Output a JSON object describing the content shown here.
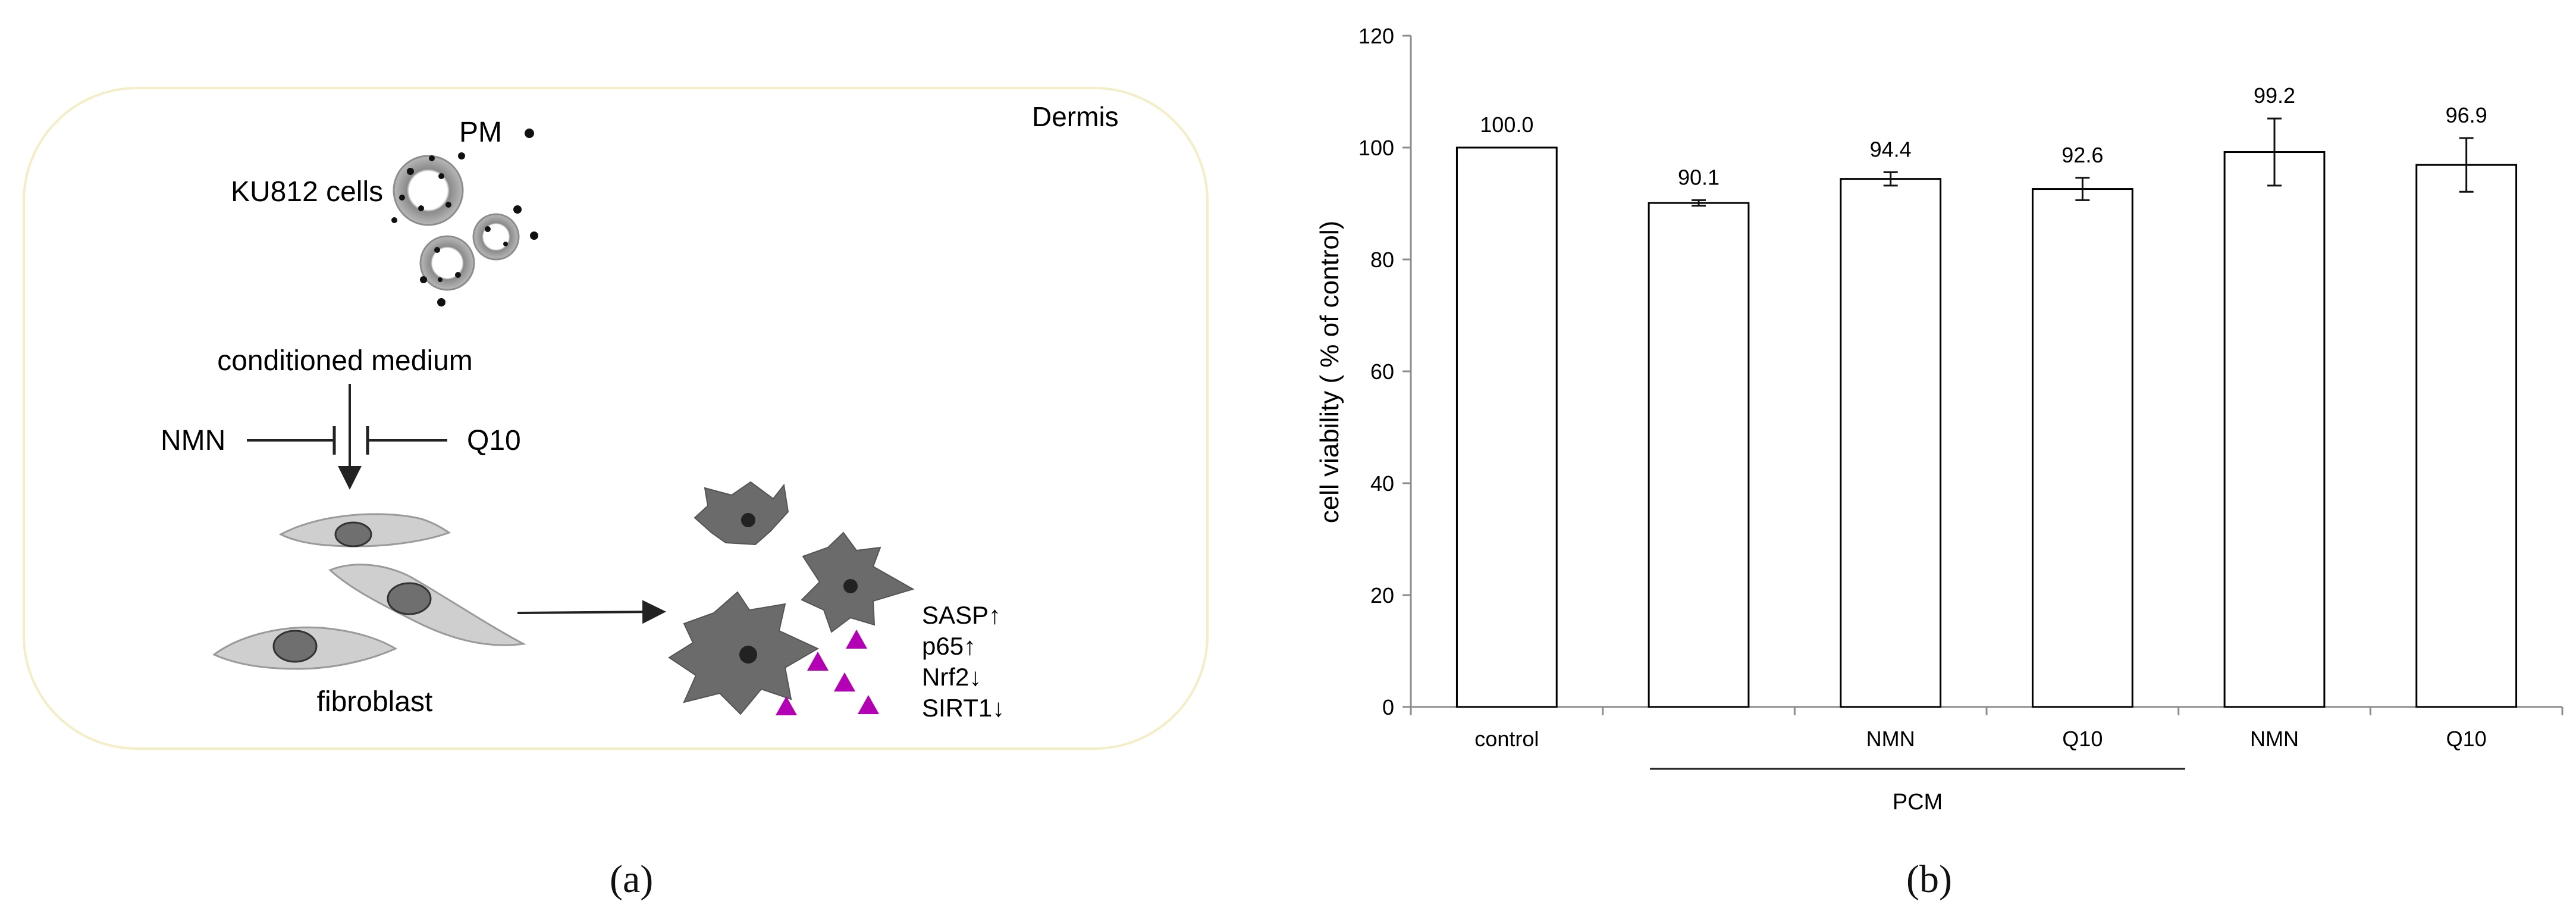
{
  "panel_a": {
    "label": "(a)",
    "region": "Dermis",
    "particle_label": "PM",
    "cell_label": "KU812 cells",
    "medium_label": "conditioned medium",
    "inhibitor_left": "NMN",
    "inhibitor_right": "Q10",
    "fibroblast_label": "fibroblast",
    "markers": [
      "SASP↑",
      "p65↑",
      "Nrf2↓",
      "SIRT1↓"
    ],
    "colors": {
      "box_border": "#f3eec6",
      "cell": "#cfcfcf",
      "nucleus": "#6f6f6f",
      "senescent": "#6b6b6b",
      "sasp_triangle": "#b400b4"
    }
  },
  "panel_b": {
    "label": "(b)",
    "group_label": "PCM"
  },
  "chart_data": {
    "type": "bar",
    "categories": [
      "control",
      "",
      "NMN",
      "Q10",
      "NMN",
      "Q10"
    ],
    "values": [
      100.0,
      90.1,
      94.4,
      92.6,
      99.2,
      96.9
    ],
    "errors": [
      0,
      0.5,
      1.2,
      2.0,
      6.0,
      4.8
    ],
    "data_labels": [
      "100.0",
      "90.1",
      "94.4",
      "92.6",
      "99.2",
      "96.9"
    ],
    "ylabel": "cell viability ( % of control)",
    "xlabel": "",
    "ylim": [
      0,
      120
    ],
    "yticks": [
      0,
      20,
      40,
      60,
      80,
      100,
      120
    ],
    "grid": false,
    "colors": {
      "bar_fill": "#ffffff",
      "bar_stroke": "#000000",
      "axis": "#8c8c8c"
    }
  }
}
